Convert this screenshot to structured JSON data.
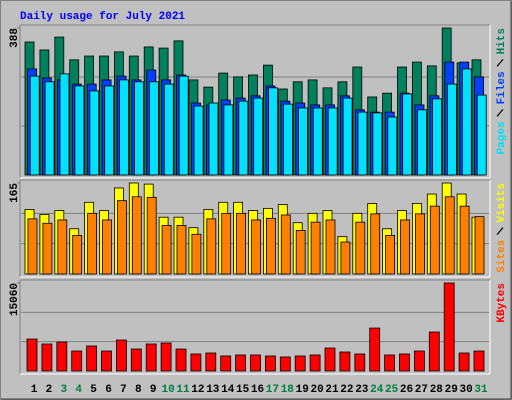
{
  "chart_data": [
    {
      "type": "bar",
      "title": "Daily usage for July 2021",
      "title_color": "#0000ff",
      "ylim": [
        0,
        388
      ],
      "yticks": [
        388
      ],
      "grid_divisions": 3,
      "series": [
        {
          "name": "Hits",
          "color": "#00805c",
          "values": [
            351,
            330,
            364,
            304,
            314,
            314,
            325,
            314,
            338,
            335,
            354,
            251,
            232,
            269,
            259,
            264,
            290,
            227,
            246,
            251,
            230,
            246,
            285,
            206,
            216,
            285,
            298,
            288,
            388,
            296,
            304
          ]
        },
        {
          "name": "Files",
          "color": "#0040ff",
          "values": [
            280,
            256,
            251,
            240,
            240,
            251,
            261,
            251,
            277,
            251,
            264,
            190,
            185,
            198,
            203,
            209,
            235,
            195,
            190,
            185,
            185,
            209,
            172,
            166,
            166,
            216,
            185,
            209,
            298,
            298,
            259
          ]
        },
        {
          "name": "Pages",
          "color": "#00e0ff",
          "values": [
            261,
            246,
            267,
            235,
            222,
            235,
            251,
            246,
            246,
            240,
            261,
            182,
            190,
            185,
            195,
            203,
            230,
            187,
            177,
            177,
            177,
            203,
            166,
            164,
            153,
            214,
            172,
            201,
            240,
            280,
            211
          ]
        }
      ]
    },
    {
      "type": "bar",
      "ylim": [
        0,
        165
      ],
      "yticks": [
        165
      ],
      "grid_divisions": 3,
      "series": [
        {
          "name": "Visits",
          "color": "#ffff00",
          "values": [
            117,
            108,
            115,
            82,
            130,
            115,
            156,
            165,
            163,
            103,
            103,
            84,
            117,
            130,
            130,
            115,
            119,
            126,
            93,
            110,
            115,
            68,
            110,
            128,
            82,
            115,
            128,
            145,
            165,
            145,
            103
          ]
        },
        {
          "name": "Sites",
          "color": "#ff8000",
          "values": [
            100,
            92,
            98,
            70,
            110,
            98,
            133,
            140,
            139,
            88,
            88,
            72,
            100,
            110,
            110,
            98,
            101,
            107,
            79,
            94,
            98,
            58,
            94,
            109,
            70,
            98,
            109,
            123,
            140,
            123,
            104
          ]
        }
      ]
    },
    {
      "type": "bar",
      "ylim": [
        0,
        15060
      ],
      "yticks": [
        15060
      ],
      "grid_divisions": 3,
      "categories": [
        "1",
        "2",
        "3",
        "4",
        "5",
        "6",
        "7",
        "8",
        "9",
        "10",
        "11",
        "12",
        "13",
        "14",
        "15",
        "16",
        "17",
        "18",
        "19",
        "20",
        "21",
        "22",
        "23",
        "24",
        "25",
        "26",
        "27",
        "28",
        "29",
        "30",
        "31"
      ],
      "category_colors": [
        "#000000",
        "#000000",
        "#008040",
        "#008040",
        "#000000",
        "#000000",
        "#000000",
        "#000000",
        "#000000",
        "#008040",
        "#008040",
        "#000000",
        "#000000",
        "#000000",
        "#000000",
        "#000000",
        "#008040",
        "#008040",
        "#000000",
        "#000000",
        "#000000",
        "#000000",
        "#000000",
        "#008040",
        "#008040",
        "#000000",
        "#000000",
        "#000000",
        "#000000",
        "#000000",
        "#008040"
      ],
      "series": [
        {
          "name": "KBytes",
          "color": "#ff0000",
          "values": [
            5470,
            4620,
            4960,
            3420,
            4280,
            3420,
            5300,
            3760,
            4620,
            4790,
            3760,
            2910,
            3080,
            2570,
            2740,
            2740,
            2570,
            2400,
            2570,
            2740,
            3930,
            3250,
            2910,
            7350,
            2740,
            2910,
            3420,
            6670,
            15060,
            3080,
            3420
          ]
        }
      ]
    }
  ]
}
